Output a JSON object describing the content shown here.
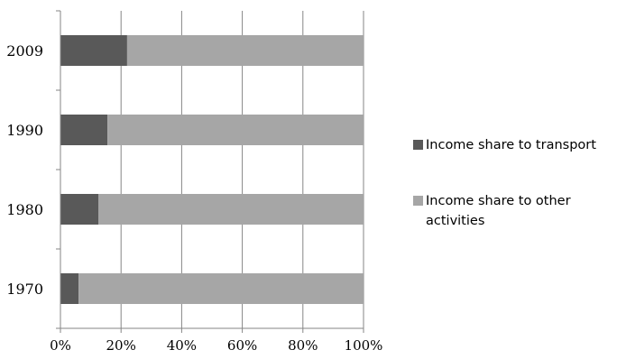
{
  "chart_data": {
    "type": "bar",
    "orientation": "horizontal",
    "stacked": true,
    "percent": true,
    "categories": [
      "1970",
      "1980",
      "1990",
      "2009"
    ],
    "series": [
      {
        "name": "Income share to transport",
        "values": [
          6,
          12.5,
          15.5,
          22
        ],
        "color": "#595959"
      },
      {
        "name": "Income share to other activities",
        "values": [
          94,
          87.5,
          84.5,
          78
        ],
        "color": "#a6a6a6"
      }
    ],
    "xlim": [
      0,
      100
    ],
    "xticks": [
      "0%",
      "20%",
      "40%",
      "60%",
      "80%",
      "100%"
    ],
    "grid": "vertical",
    "legend": {
      "position": "right"
    }
  }
}
